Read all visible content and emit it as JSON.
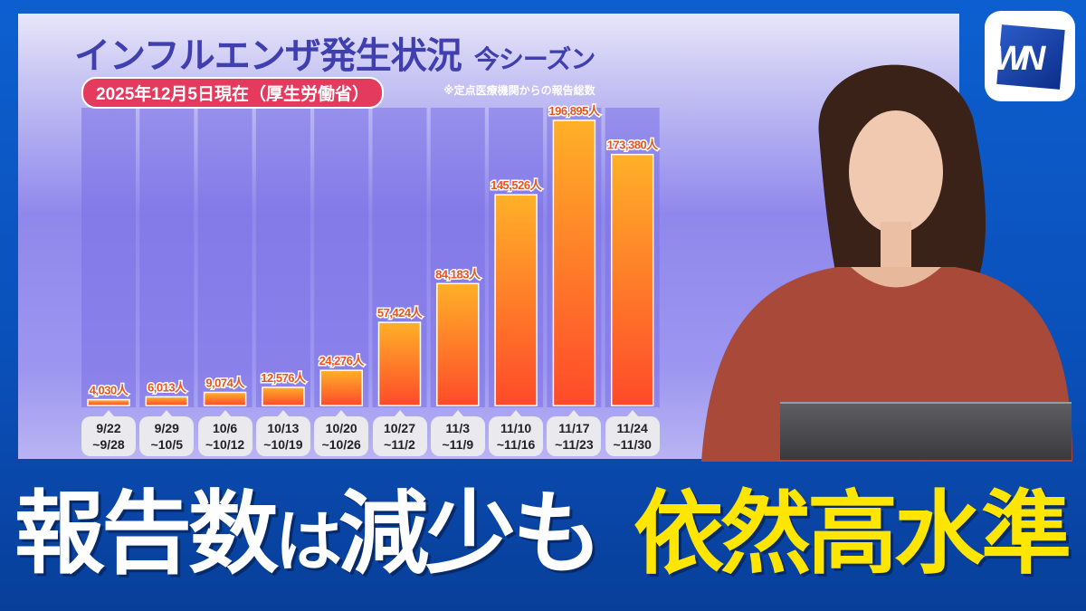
{
  "chart_data": {
    "type": "bar",
    "title": "インフルエンザ発生状況",
    "subtitle": "今シーズン",
    "date_label": "2025年12月5日現在（厚生労働省）",
    "note": "※定点医療機関からの報告総数",
    "unit": "人",
    "categories": [
      [
        "9/22",
        "~9/28"
      ],
      [
        "9/29",
        "~10/5"
      ],
      [
        "10/6",
        "~10/12"
      ],
      [
        "10/13",
        "~10/19"
      ],
      [
        "10/20",
        "~10/26"
      ],
      [
        "10/27",
        "~11/2"
      ],
      [
        "11/3",
        "~11/9"
      ],
      [
        "11/10",
        "~11/16"
      ],
      [
        "11/17",
        "~11/23"
      ],
      [
        "11/24",
        "~11/30"
      ]
    ],
    "values": [
      4030,
      6013,
      9074,
      12576,
      24276,
      57424,
      84183,
      145526,
      196895,
      173380
    ],
    "value_labels": [
      "4,030",
      "6,013",
      "9,074",
      "12,576",
      "24,276",
      "57,424",
      "84,183",
      "145,526",
      "196,895",
      "173,380"
    ],
    "ylim": [
      0,
      196895
    ],
    "colors": {
      "bar_top": "#ffb028",
      "bar_bottom": "#ff4a2a",
      "label": "#e8551e"
    }
  },
  "logo": "WN",
  "caption": {
    "left_a": "報告数",
    "left_b": "は",
    "left_c": "減少も",
    "right": "依然高水準"
  }
}
